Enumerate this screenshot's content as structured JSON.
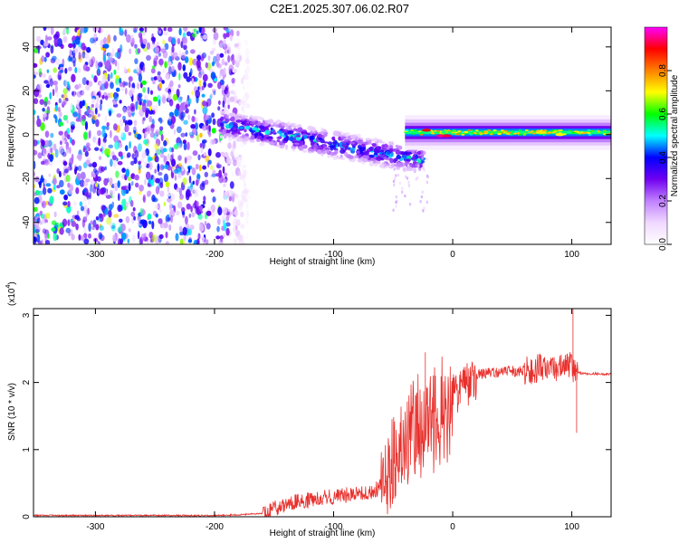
{
  "title": "C2E1.2025.307.06.02.R07",
  "chart_data": [
    {
      "type": "heatmap",
      "xlabel": "Height of straight line (km)",
      "ylabel": "Frequency (Hz)",
      "xlim": [
        -352,
        133
      ],
      "ylim": [
        -50,
        49
      ],
      "xticks": [
        -300,
        -200,
        -100,
        0,
        100
      ],
      "yticks": [
        -40,
        -20,
        0,
        20,
        40
      ],
      "xtick_labels": [
        "-300",
        "-200",
        "-100",
        "0",
        "100"
      ],
      "ytick_labels": [
        "-40",
        "-20",
        "0",
        "20",
        "40"
      ],
      "colorbar": {
        "label": "Normalized spectral amplitude",
        "range": [
          0,
          1
        ],
        "ticks": [
          0.0,
          0.2,
          0.4,
          0.6,
          0.8
        ],
        "tick_labels": [
          "0.0",
          "0.2",
          "0.4",
          "0.6",
          "0.8"
        ],
        "colors": [
          "#ffffff",
          "#f0d8ff",
          "#c080ff",
          "#7000f0",
          "#0000ff",
          "#00ffff",
          "#00ff00",
          "#ffff00",
          "#ff8000",
          "#ff0000",
          "#ff00ff"
        ]
      },
      "regions": [
        {
          "name": "broadband noise",
          "x_range": [
            -352,
            -170
          ],
          "freq_range": [
            -50,
            49
          ],
          "amplitude": 0.1
        },
        {
          "name": "descending band",
          "x_range": [
            -195,
            -25
          ],
          "freq_start": 5,
          "freq_end": -12,
          "amplitude": 0.35
        },
        {
          "name": "tone",
          "x_range": [
            -40,
            133
          ],
          "freq": 1,
          "amplitude": 0.5
        }
      ]
    },
    {
      "type": "line",
      "xlabel": "Height of straight line (km)",
      "ylabel": "SNR (10 * v/v)",
      "multiplier_label": "(x10",
      "multiplier_exp": "4",
      "multiplier_close": ")",
      "xlim": [
        -352,
        133
      ],
      "ylim": [
        0,
        3.1
      ],
      "xticks": [
        -300,
        -200,
        -100,
        0,
        100
      ],
      "yticks": [
        0,
        1,
        2,
        3
      ],
      "xtick_labels": [
        "-300",
        "-200",
        "-100",
        "0",
        "100"
      ],
      "ytick_labels": [
        "0",
        "1",
        "2",
        "3"
      ],
      "color": "#e8302c",
      "series": [
        {
          "name": "SNR",
          "x": [
            -352,
            -300,
            -250,
            -200,
            -180,
            -160,
            -150,
            -140,
            -130,
            -120,
            -110,
            -100,
            -90,
            -80,
            -70,
            -60,
            -55,
            -50,
            -45,
            -40,
            -35,
            -30,
            -25,
            -20,
            -15,
            -10,
            -5,
            0,
            5,
            10,
            15,
            20,
            30,
            40,
            50,
            60,
            70,
            80,
            90,
            95,
            100,
            103,
            105,
            110,
            120,
            133
          ],
          "values": [
            0.02,
            0.02,
            0.02,
            0.02,
            0.03,
            0.05,
            0.12,
            0.18,
            0.22,
            0.25,
            0.28,
            0.3,
            0.32,
            0.33,
            0.35,
            0.45,
            0.6,
            0.8,
            0.95,
            1.1,
            1.3,
            1.5,
            1.4,
            1.5,
            1.6,
            1.7,
            1.75,
            1.8,
            1.85,
            1.9,
            2.0,
            2.1,
            2.15,
            2.15,
            2.17,
            2.17,
            2.2,
            2.22,
            2.2,
            2.25,
            2.25,
            2.1,
            2.15,
            2.13,
            2.13,
            2.12
          ]
        }
      ]
    }
  ]
}
